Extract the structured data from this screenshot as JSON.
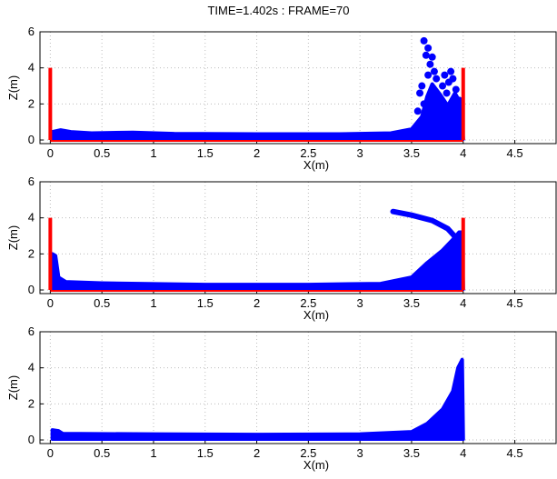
{
  "title": "TIME=1.402s :   FRAME=70",
  "colors": {
    "fluid": "#0000ff",
    "wall": "#ff0000",
    "axis": "#000000",
    "grid": "#bdbdbd"
  },
  "chart_data": [
    {
      "type": "scatter",
      "xlabel": "X(m)",
      "ylabel": "Z(m)",
      "xlim": [
        -0.1,
        4.9
      ],
      "ylim": [
        -0.2,
        6
      ],
      "xticks": [
        "0",
        "0.5",
        "1",
        "1.5",
        "2",
        "2.5",
        "3",
        "3.5",
        "4",
        "4.5"
      ],
      "yticks": [
        "0",
        "2",
        "4",
        "6"
      ],
      "grid": true,
      "walls": [
        {
          "x": 0.0,
          "z0": 0,
          "z1": 4
        },
        {
          "x": 4.0,
          "z0": 0,
          "z1": 4
        }
      ],
      "series": [
        {
          "upper": [
            [
              0.02,
              0.45
            ],
            [
              0.1,
              0.55
            ],
            [
              0.2,
              0.45
            ],
            [
              0.4,
              0.38
            ],
            [
              0.8,
              0.42
            ],
            [
              1.2,
              0.35
            ],
            [
              2.0,
              0.33
            ],
            [
              2.8,
              0.33
            ],
            [
              3.3,
              0.38
            ],
            [
              3.5,
              0.6
            ],
            [
              3.6,
              1.3
            ],
            [
              3.65,
              2.4
            ],
            [
              3.7,
              3.1
            ],
            [
              3.78,
              2.5
            ],
            [
              3.85,
              1.9
            ],
            [
              3.92,
              2.6
            ],
            [
              3.98,
              2.0
            ]
          ],
          "lower": [
            [
              0.02,
              0.05
            ],
            [
              4.0,
              0.05
            ]
          ],
          "droplets": [
            [
              3.62,
              5.5
            ],
            [
              3.66,
              5.1
            ],
            [
              3.64,
              4.7
            ],
            [
              3.7,
              4.6
            ],
            [
              3.68,
              4.2
            ],
            [
              3.72,
              3.8
            ],
            [
              3.66,
              3.6
            ],
            [
              3.74,
              3.4
            ],
            [
              3.8,
              3.0
            ],
            [
              3.86,
              3.2
            ],
            [
              3.9,
              3.4
            ],
            [
              3.88,
              3.8
            ],
            [
              3.93,
              2.8
            ],
            [
              3.84,
              2.6
            ],
            [
              3.96,
              2.2
            ],
            [
              3.78,
              2.2
            ],
            [
              3.6,
              3.0
            ],
            [
              3.58,
              2.6
            ],
            [
              3.62,
              2.0
            ],
            [
              3.56,
              1.6
            ],
            [
              3.82,
              3.6
            ]
          ]
        }
      ]
    },
    {
      "type": "scatter",
      "xlabel": "X(m)",
      "ylabel": "Z(m)",
      "xlim": [
        -0.1,
        4.9
      ],
      "ylim": [
        -0.2,
        6
      ],
      "xticks": [
        "0",
        "0.5",
        "1",
        "1.5",
        "2",
        "2.5",
        "3",
        "3.5",
        "4",
        "4.5"
      ],
      "yticks": [
        "0",
        "2",
        "4",
        "6"
      ],
      "grid": true,
      "walls": [
        {
          "x": 0.0,
          "z0": 0,
          "z1": 4
        },
        {
          "x": 4.0,
          "z0": 0,
          "z1": 4
        }
      ],
      "series": [
        {
          "upper": [
            [
              0.02,
              2.0
            ],
            [
              0.05,
              1.9
            ],
            [
              0.08,
              0.7
            ],
            [
              0.15,
              0.45
            ],
            [
              0.5,
              0.38
            ],
            [
              1.5,
              0.3
            ],
            [
              2.5,
              0.3
            ],
            [
              3.2,
              0.35
            ],
            [
              3.5,
              0.7
            ],
            [
              3.65,
              1.5
            ],
            [
              3.8,
              2.2
            ],
            [
              3.9,
              2.8
            ],
            [
              3.96,
              3.2
            ],
            [
              3.99,
              3.2
            ]
          ],
          "lower": [
            [
              0.02,
              0.05
            ],
            [
              4.0,
              0.05
            ]
          ],
          "jet": [
            [
              3.32,
              4.35
            ],
            [
              3.5,
              4.15
            ],
            [
              3.7,
              3.85
            ],
            [
              3.85,
              3.4
            ],
            [
              3.93,
              2.9
            ],
            [
              3.98,
              2.2
            ]
          ],
          "droplets": []
        }
      ]
    },
    {
      "type": "scatter",
      "xlabel": "X(m)",
      "ylabel": "Z(m)",
      "xlim": [
        -0.1,
        4.9
      ],
      "ylim": [
        -0.2,
        6
      ],
      "xticks": [
        "0",
        "0.5",
        "1",
        "1.5",
        "2",
        "2.5",
        "3",
        "3.5",
        "4",
        "4.5"
      ],
      "yticks": [
        "0",
        "2",
        "4",
        "6"
      ],
      "grid": true,
      "walls": [],
      "series": [
        {
          "upper": [
            [
              0.02,
              0.55
            ],
            [
              0.08,
              0.5
            ],
            [
              0.12,
              0.35
            ],
            [
              1.0,
              0.32
            ],
            [
              2.0,
              0.3
            ],
            [
              3.0,
              0.32
            ],
            [
              3.5,
              0.45
            ],
            [
              3.65,
              0.9
            ],
            [
              3.8,
              1.7
            ],
            [
              3.9,
              2.7
            ],
            [
              3.95,
              4.0
            ],
            [
              3.99,
              4.45
            ]
          ],
          "lower": [
            [
              0.02,
              0.05
            ],
            [
              4.0,
              0.05
            ]
          ],
          "droplets": []
        }
      ]
    }
  ]
}
